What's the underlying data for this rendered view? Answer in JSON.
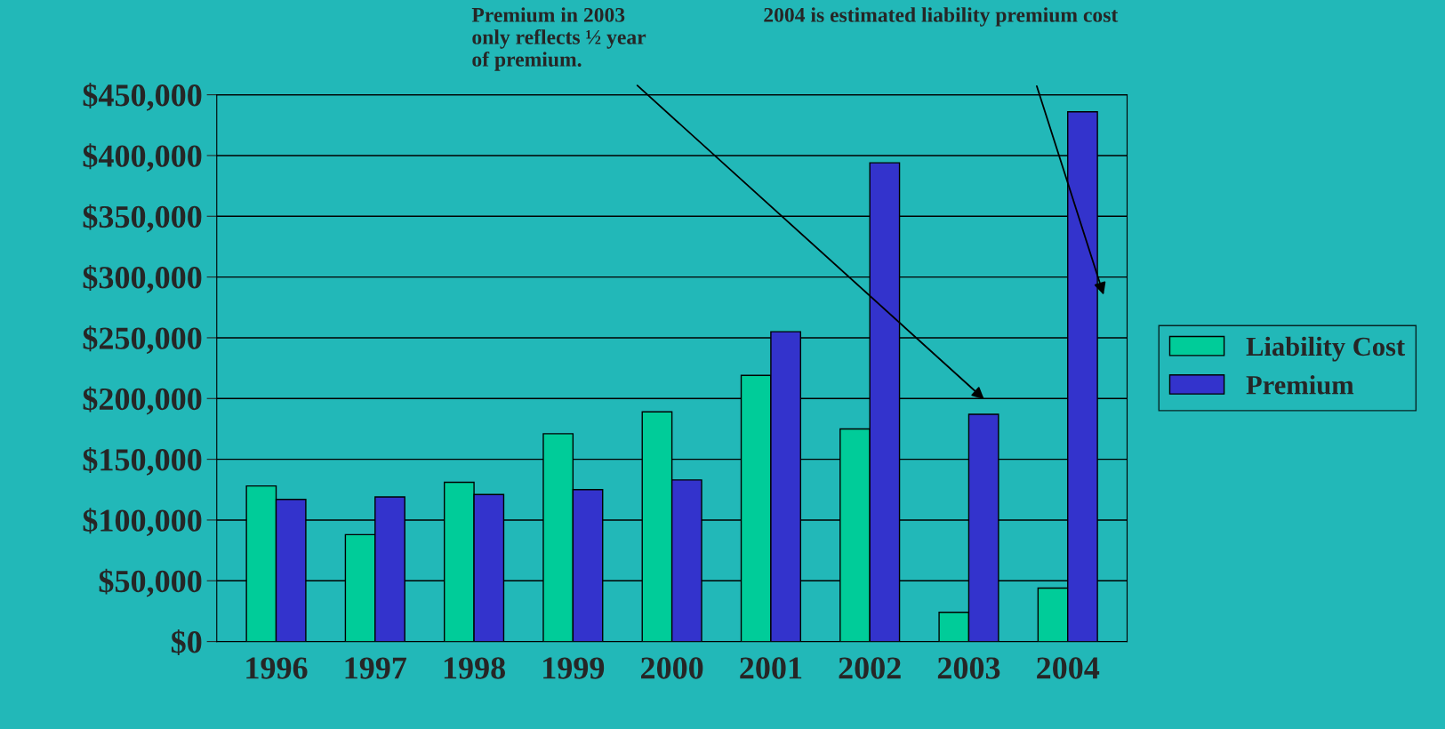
{
  "chart_data": {
    "type": "bar",
    "categories": [
      "1996",
      "1997",
      "1998",
      "1999",
      "2000",
      "2001",
      "2002",
      "2003",
      "2004"
    ],
    "series": [
      {
        "name": "Liability Cost",
        "color": "#00cc99",
        "values": [
          128000,
          88000,
          131000,
          171000,
          189000,
          219000,
          175000,
          24000,
          44000
        ]
      },
      {
        "name": "Premium",
        "color": "#3333cc",
        "values": [
          117000,
          119000,
          121000,
          125000,
          133000,
          255000,
          394000,
          187000,
          436000
        ]
      }
    ],
    "ylim": [
      0,
      450000
    ],
    "yticks": [
      {
        "value": 0,
        "label": "$0"
      },
      {
        "value": 50000,
        "label": "$50,000"
      },
      {
        "value": 100000,
        "label": "$100,000"
      },
      {
        "value": 150000,
        "label": "$150,000"
      },
      {
        "value": 200000,
        "label": "$200,000"
      },
      {
        "value": 250000,
        "label": "$250,000"
      },
      {
        "value": 300000,
        "label": "$300,000"
      },
      {
        "value": 350000,
        "label": "$350,000"
      },
      {
        "value": 400000,
        "label": "$400,000"
      },
      {
        "value": 450000,
        "label": "$450,000"
      }
    ],
    "grid": "y",
    "legend": "right",
    "annotations": [
      "Premium in 2003\nonly reflects ½ year\nof premium.",
      "2004 is estimated liability premium cost"
    ]
  }
}
